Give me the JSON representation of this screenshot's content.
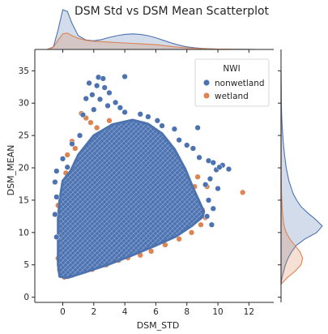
{
  "chart_data": {
    "type": "scatter",
    "title": "DSM Std vs DSM Mean Scatterplot",
    "xlabel": "DSM_STD",
    "ylabel": "DSM_MEAN",
    "xlim": [
      -1.8,
      13.6
    ],
    "ylim": [
      -0.8,
      38.3
    ],
    "xticks": [
      0,
      2,
      4,
      6,
      8,
      10,
      12
    ],
    "yticks": [
      0,
      5,
      10,
      15,
      20,
      25,
      30,
      35
    ],
    "grid": false,
    "marginal": "kde",
    "legend": {
      "title": "NWI",
      "placement": "top-right",
      "entries": [
        "nonwetland",
        "wetland"
      ]
    },
    "series": [
      {
        "name": "nonwetland",
        "color": "#4c72b0",
        "cloud": [
          [
            -0.2,
            3.2
          ],
          [
            0.3,
            3.0
          ],
          [
            1.5,
            3.9
          ],
          [
            3.0,
            5.1
          ],
          [
            4.5,
            6.5
          ],
          [
            6.0,
            8.0
          ],
          [
            7.3,
            9.4
          ],
          [
            8.3,
            11.0
          ],
          [
            9.0,
            12.4
          ],
          [
            9.1,
            13.2
          ],
          [
            8.8,
            14.8
          ],
          [
            8.4,
            16.9
          ],
          [
            7.9,
            19.8
          ],
          [
            7.2,
            22.9
          ],
          [
            6.4,
            25.3
          ],
          [
            5.5,
            26.8
          ],
          [
            4.5,
            27.4
          ],
          [
            3.2,
            26.7
          ],
          [
            2.0,
            25.0
          ],
          [
            1.0,
            22.0
          ],
          [
            0.5,
            19.5
          ],
          [
            0.0,
            18.0
          ],
          [
            -0.2,
            15.0
          ],
          [
            -0.3,
            12.0
          ],
          [
            -0.3,
            8.0
          ],
          [
            -0.3,
            5.0
          ]
        ],
        "points": [
          [
            2.3,
            34.0
          ],
          [
            2.6,
            33.8
          ],
          [
            1.7,
            33.1
          ],
          [
            2.2,
            32.7
          ],
          [
            2.7,
            32.4
          ],
          [
            3.0,
            31.6
          ],
          [
            1.9,
            31.3
          ],
          [
            2.4,
            30.6
          ],
          [
            3.4,
            30.1
          ],
          [
            1.5,
            30.7
          ],
          [
            2.9,
            29.6
          ],
          [
            2.0,
            29.0
          ],
          [
            3.7,
            29.3
          ],
          [
            1.3,
            28.2
          ],
          [
            4.0,
            28.6
          ],
          [
            5.0,
            28.3
          ],
          [
            5.5,
            27.9
          ],
          [
            6.1,
            27.3
          ],
          [
            6.4,
            26.5
          ],
          [
            7.2,
            26.0
          ],
          [
            7.5,
            24.3
          ],
          [
            8.0,
            23.5
          ],
          [
            8.4,
            23.0
          ],
          [
            8.8,
            21.6
          ],
          [
            9.4,
            21.1
          ],
          [
            9.7,
            20.8
          ],
          [
            10.3,
            20.4
          ],
          [
            9.9,
            19.7
          ],
          [
            10.7,
            19.8
          ],
          [
            10.1,
            20.1
          ],
          [
            9.5,
            18.3
          ],
          [
            9.2,
            17.4
          ],
          [
            10.0,
            16.8
          ],
          [
            9.4,
            15.0
          ],
          [
            9.7,
            13.7
          ],
          [
            9.3,
            12.5
          ],
          [
            9.6,
            11.2
          ],
          [
            -0.4,
            19.5
          ],
          [
            -0.5,
            17.8
          ],
          [
            0.0,
            21.4
          ],
          [
            0.6,
            23.7
          ],
          [
            1.1,
            25.0
          ],
          [
            0.3,
            20.1
          ],
          [
            -0.4,
            15.5
          ],
          [
            -0.5,
            12.8
          ],
          [
            -0.4,
            9.3
          ],
          [
            4.0,
            34.1
          ],
          [
            8.7,
            26.2
          ]
        ]
      },
      {
        "name": "wetland",
        "color": "#dd8452",
        "points": [
          [
            1.2,
            28.4
          ],
          [
            1.5,
            27.7
          ],
          [
            0.6,
            24.1
          ],
          [
            0.8,
            23.0
          ],
          [
            0.3,
            22.0
          ],
          [
            0.9,
            21.0
          ],
          [
            0.2,
            19.2
          ],
          [
            1.0,
            17.1
          ],
          [
            0.5,
            16.2
          ],
          [
            0.7,
            15.0
          ],
          [
            1.1,
            13.9
          ],
          [
            1.0,
            19.0
          ],
          [
            -0.3,
            14.2
          ],
          [
            -0.2,
            12.3
          ],
          [
            0.8,
            10.9
          ],
          [
            1.5,
            9.9
          ],
          [
            2.0,
            8.8
          ],
          [
            1.0,
            7.5
          ],
          [
            1.7,
            6.4
          ],
          [
            2.5,
            5.9
          ],
          [
            3.0,
            6.2
          ],
          [
            3.6,
            5.7
          ],
          [
            4.2,
            6.1
          ],
          [
            5.0,
            6.5
          ],
          [
            5.7,
            7.1
          ],
          [
            6.6,
            8.1
          ],
          [
            7.5,
            9.0
          ],
          [
            8.3,
            10.0
          ],
          [
            8.9,
            11.2
          ],
          [
            9.2,
            12.3
          ],
          [
            9.0,
            13.5
          ],
          [
            8.6,
            14.6
          ],
          [
            8.2,
            15.6
          ],
          [
            8.5,
            17.1
          ],
          [
            8.0,
            18.2
          ],
          [
            7.7,
            19.5
          ],
          [
            7.4,
            20.9
          ],
          [
            6.9,
            22.4
          ],
          [
            6.4,
            24.6
          ],
          [
            5.8,
            26.0
          ],
          [
            5.2,
            26.8
          ],
          [
            4.6,
            26.0
          ],
          [
            3.9,
            25.3
          ],
          [
            8.7,
            18.6
          ],
          [
            9.3,
            17.1
          ],
          [
            8.8,
            12.6
          ],
          [
            6.5,
            12.5
          ],
          [
            11.6,
            16.2
          ],
          [
            0.1,
            3.1
          ],
          [
            0.6,
            3.4
          ],
          [
            1.2,
            3.9
          ],
          [
            1.9,
            4.3
          ],
          [
            -0.2,
            4.2
          ],
          [
            -0.3,
            6.0
          ],
          [
            0.0,
            8.2
          ],
          [
            0.2,
            9.4
          ],
          [
            2.8,
            5.0
          ],
          [
            4.4,
            7.0
          ],
          [
            2.2,
            26.2
          ],
          [
            3.0,
            27.3
          ],
          [
            1.8,
            27.0
          ],
          [
            6.0,
            9.0
          ],
          [
            7.0,
            10.2
          ],
          [
            7.9,
            11.0
          ]
        ]
      }
    ],
    "marginal_x": {
      "x": [
        -1.0,
        -0.6,
        -0.3,
        0.0,
        0.3,
        0.6,
        1.0,
        1.5,
        2.0,
        2.5,
        3.0,
        3.5,
        4.0,
        4.5,
        5.0,
        5.5,
        6.0,
        6.5,
        7.0,
        7.5,
        8.0,
        8.5,
        9.0,
        9.5,
        10.0,
        11.0,
        12.0,
        12.6
      ],
      "nonwetland": [
        0.0,
        0.06,
        0.45,
        0.92,
        0.88,
        0.6,
        0.32,
        0.22,
        0.2,
        0.23,
        0.28,
        0.32,
        0.35,
        0.36,
        0.35,
        0.32,
        0.27,
        0.21,
        0.15,
        0.1,
        0.06,
        0.04,
        0.025,
        0.015,
        0.01,
        0.004,
        0.002,
        0.0
      ],
      "wetland": [
        0.0,
        0.05,
        0.22,
        0.36,
        0.38,
        0.32,
        0.26,
        0.21,
        0.19,
        0.18,
        0.17,
        0.16,
        0.15,
        0.14,
        0.13,
        0.12,
        0.11,
        0.09,
        0.07,
        0.05,
        0.035,
        0.025,
        0.018,
        0.012,
        0.008,
        0.004,
        0.002,
        0.0
      ]
    },
    "marginal_y": {
      "y": [
        2.0,
        3.0,
        4.0,
        5.0,
        6.0,
        7.0,
        8.0,
        9.0,
        10.0,
        11.0,
        12.0,
        13.0,
        14.0,
        15.0,
        16.0,
        18.0,
        20.0,
        22.0,
        24.0,
        26.0,
        28.0,
        30.0,
        33.0,
        35.0
      ],
      "nonwetland": [
        0.0,
        0.02,
        0.06,
        0.1,
        0.16,
        0.24,
        0.35,
        0.55,
        0.82,
        0.95,
        0.8,
        0.62,
        0.46,
        0.36,
        0.28,
        0.18,
        0.12,
        0.08,
        0.05,
        0.03,
        0.015,
        0.008,
        0.003,
        0.0
      ],
      "wetland": [
        0.0,
        0.14,
        0.32,
        0.46,
        0.5,
        0.44,
        0.32,
        0.2,
        0.12,
        0.07,
        0.05,
        0.035,
        0.025,
        0.018,
        0.012,
        0.008,
        0.005,
        0.003,
        0.002,
        0.001,
        0.0,
        0.0,
        0.0,
        0.0
      ]
    }
  }
}
